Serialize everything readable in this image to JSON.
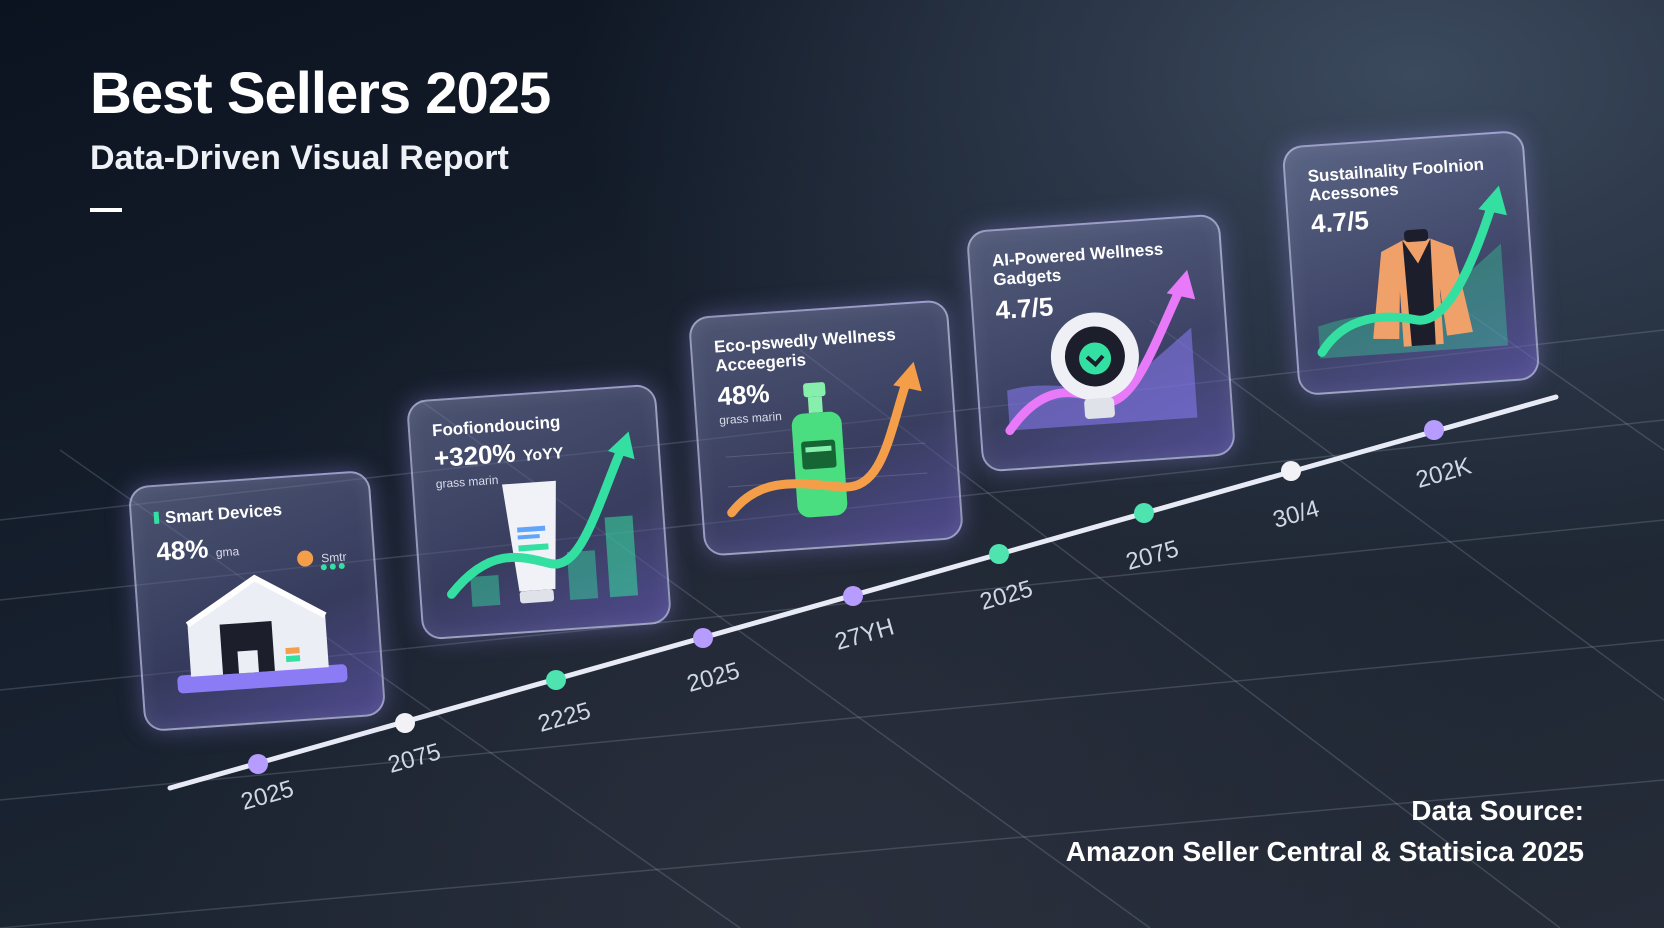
{
  "header": {
    "title": "Best Sellers 2025",
    "subtitle": "Data-Driven Visual Report"
  },
  "source": {
    "line1": "Data Source:",
    "line2": "Amazon Seller Central & Statisica 2025"
  },
  "timeline": {
    "labels": [
      "2025",
      "2075",
      "2225",
      "2025",
      "27YH",
      "2025",
      "2075",
      "30/4",
      "202K"
    ]
  },
  "cards": [
    {
      "title": "Smart Devices",
      "metric": "48%",
      "metric_suffix": "gma",
      "note": "Smtr",
      "icon": "smart-home-icon"
    },
    {
      "title": "Foofiondoucing",
      "metric": "+320%",
      "metric_suffix": "YoYY",
      "note": "grass marin",
      "icon": "tube-product-icon"
    },
    {
      "title": "Eco-pswedly Wellness\nAcceegeris",
      "metric": "48%",
      "note": "grass marin",
      "icon": "bottle-product-icon"
    },
    {
      "title": "AI-Powered Wellness\nGadgets",
      "metric": "4.7/5",
      "note": "",
      "icon": "wellness-gadget-icon"
    },
    {
      "title": "Sustailnality Foolnion\nAcessones",
      "metric": "4.7/5",
      "note": "",
      "icon": "jacket-icon"
    }
  ],
  "colors": {
    "accent_purple": "#a78bfa",
    "accent_green": "#34e0a1",
    "accent_orange": "#f59e4a",
    "accent_pink": "#e879f9"
  }
}
